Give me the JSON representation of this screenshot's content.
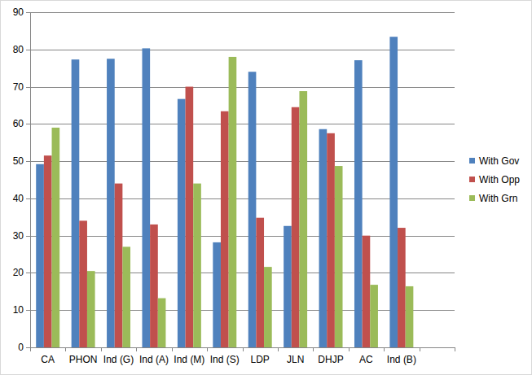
{
  "chart_data": {
    "type": "bar",
    "categories": [
      "CA",
      "PHON",
      "Ind (G)",
      "Ind (A)",
      "Ind (M)",
      "Ind (S)",
      "LDP",
      "JLN",
      "DHJP",
      "AC",
      "Ind (B)",
      null
    ],
    "series": [
      {
        "name": "With Gov",
        "color": "#4f81bd",
        "values": [
          49.2,
          77.3,
          77.5,
          80.3,
          66.7,
          28.2,
          74,
          32.6,
          58.6,
          77.1,
          83.4,
          null
        ]
      },
      {
        "name": "With Opp",
        "color": "#c0504d",
        "values": [
          51.5,
          34,
          44,
          33,
          70,
          63.4,
          34.8,
          64.5,
          57.5,
          30,
          32.1,
          null
        ]
      },
      {
        "name": "With Grn",
        "color": "#9bbb59",
        "values": [
          59,
          20.5,
          27,
          13.2,
          44,
          78,
          21.6,
          68.8,
          48.7,
          16.8,
          16.4,
          null
        ]
      }
    ],
    "ylim": [
      0,
      90
    ],
    "yticks": [
      0,
      10,
      20,
      30,
      40,
      50,
      60,
      70,
      80,
      90
    ],
    "grid": true,
    "legend": "right"
  }
}
